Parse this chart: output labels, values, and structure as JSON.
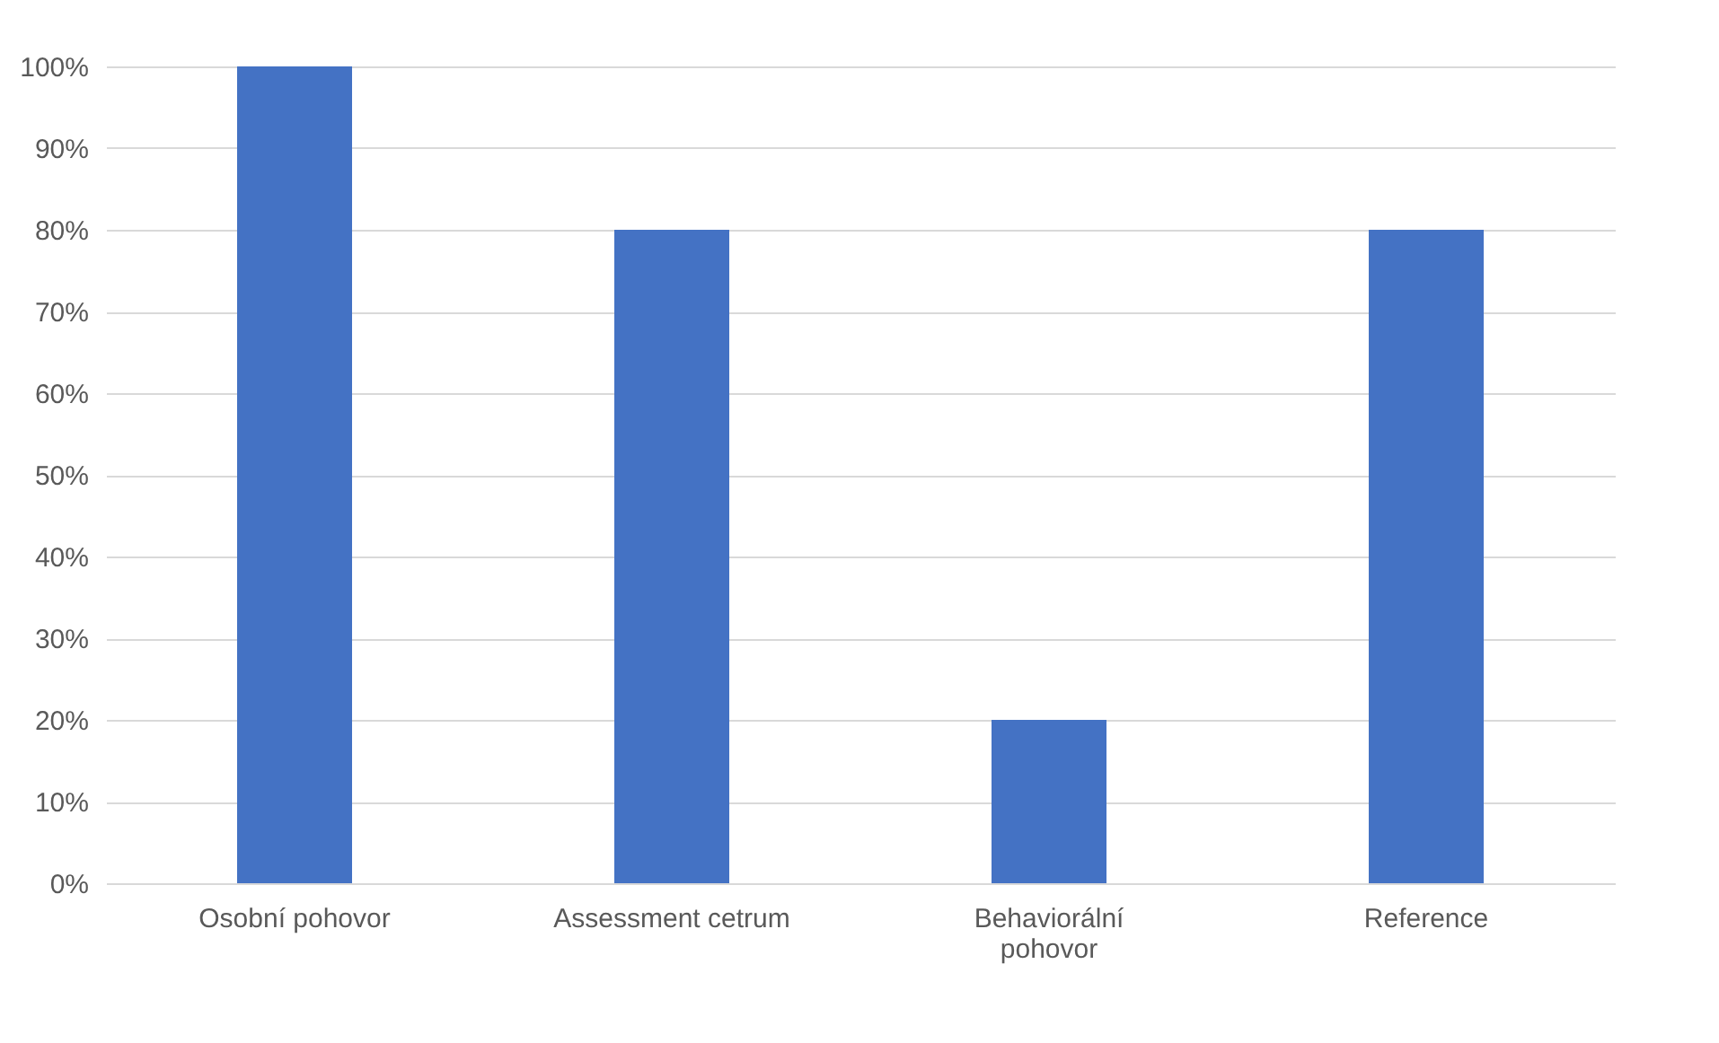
{
  "chart_data": {
    "type": "bar",
    "categories": [
      "Osobní pohovor",
      "Assessment cetrum",
      "Behaviorální pohovor",
      "Reference"
    ],
    "values": [
      100,
      80,
      20,
      80
    ],
    "color": "#4472c4",
    "ylim": [
      0,
      100
    ],
    "yticks": [
      {
        "value": 0,
        "label": "0%"
      },
      {
        "value": 10,
        "label": "10%"
      },
      {
        "value": 20,
        "label": "20%"
      },
      {
        "value": 30,
        "label": "30%"
      },
      {
        "value": 40,
        "label": "40%"
      },
      {
        "value": 50,
        "label": "50%"
      },
      {
        "value": 60,
        "label": "60%"
      },
      {
        "value": 70,
        "label": "70%"
      },
      {
        "value": 80,
        "label": "80%"
      },
      {
        "value": 90,
        "label": "90%"
      },
      {
        "value": 100,
        "label": "100%"
      }
    ],
    "grid": "y"
  }
}
